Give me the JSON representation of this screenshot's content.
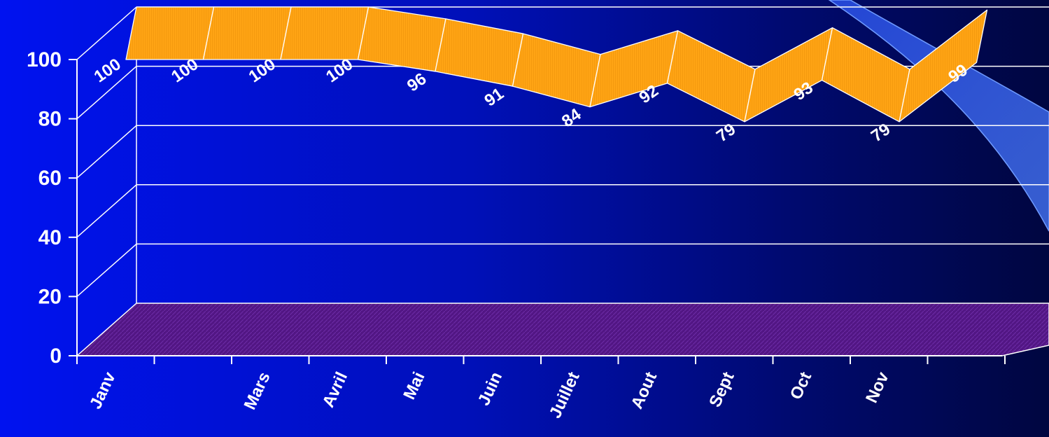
{
  "chart_data": {
    "type": "area",
    "title": "",
    "xlabel": "",
    "ylabel": "",
    "categories": [
      "Janv",
      "",
      "Mars",
      "Avril",
      "Mai",
      "Juin",
      "Juillet",
      "Aout",
      "Sept",
      "Oct",
      "Nov",
      ""
    ],
    "values": [
      100,
      100,
      100,
      100,
      96,
      91,
      84,
      92,
      79,
      93,
      79,
      99
    ],
    "data_labels": [
      "100",
      "100",
      "100",
      "100",
      "96",
      "91",
      "84",
      "92",
      "79",
      "93",
      "79",
      "99"
    ],
    "ylim": [
      0,
      100
    ],
    "yticks": [
      0,
      20,
      40,
      60,
      80,
      100
    ],
    "grid": true,
    "style": "3d",
    "colors": {
      "ribbon": "#ffa414",
      "ribbon_top": "#ffab1c",
      "floor": "#5a1a8c",
      "grid": "#ffffff",
      "axis_text": "#ffffff",
      "background_left": "#0012f0",
      "background_right": "#000640",
      "swoosh": "#3a6cf0"
    }
  }
}
